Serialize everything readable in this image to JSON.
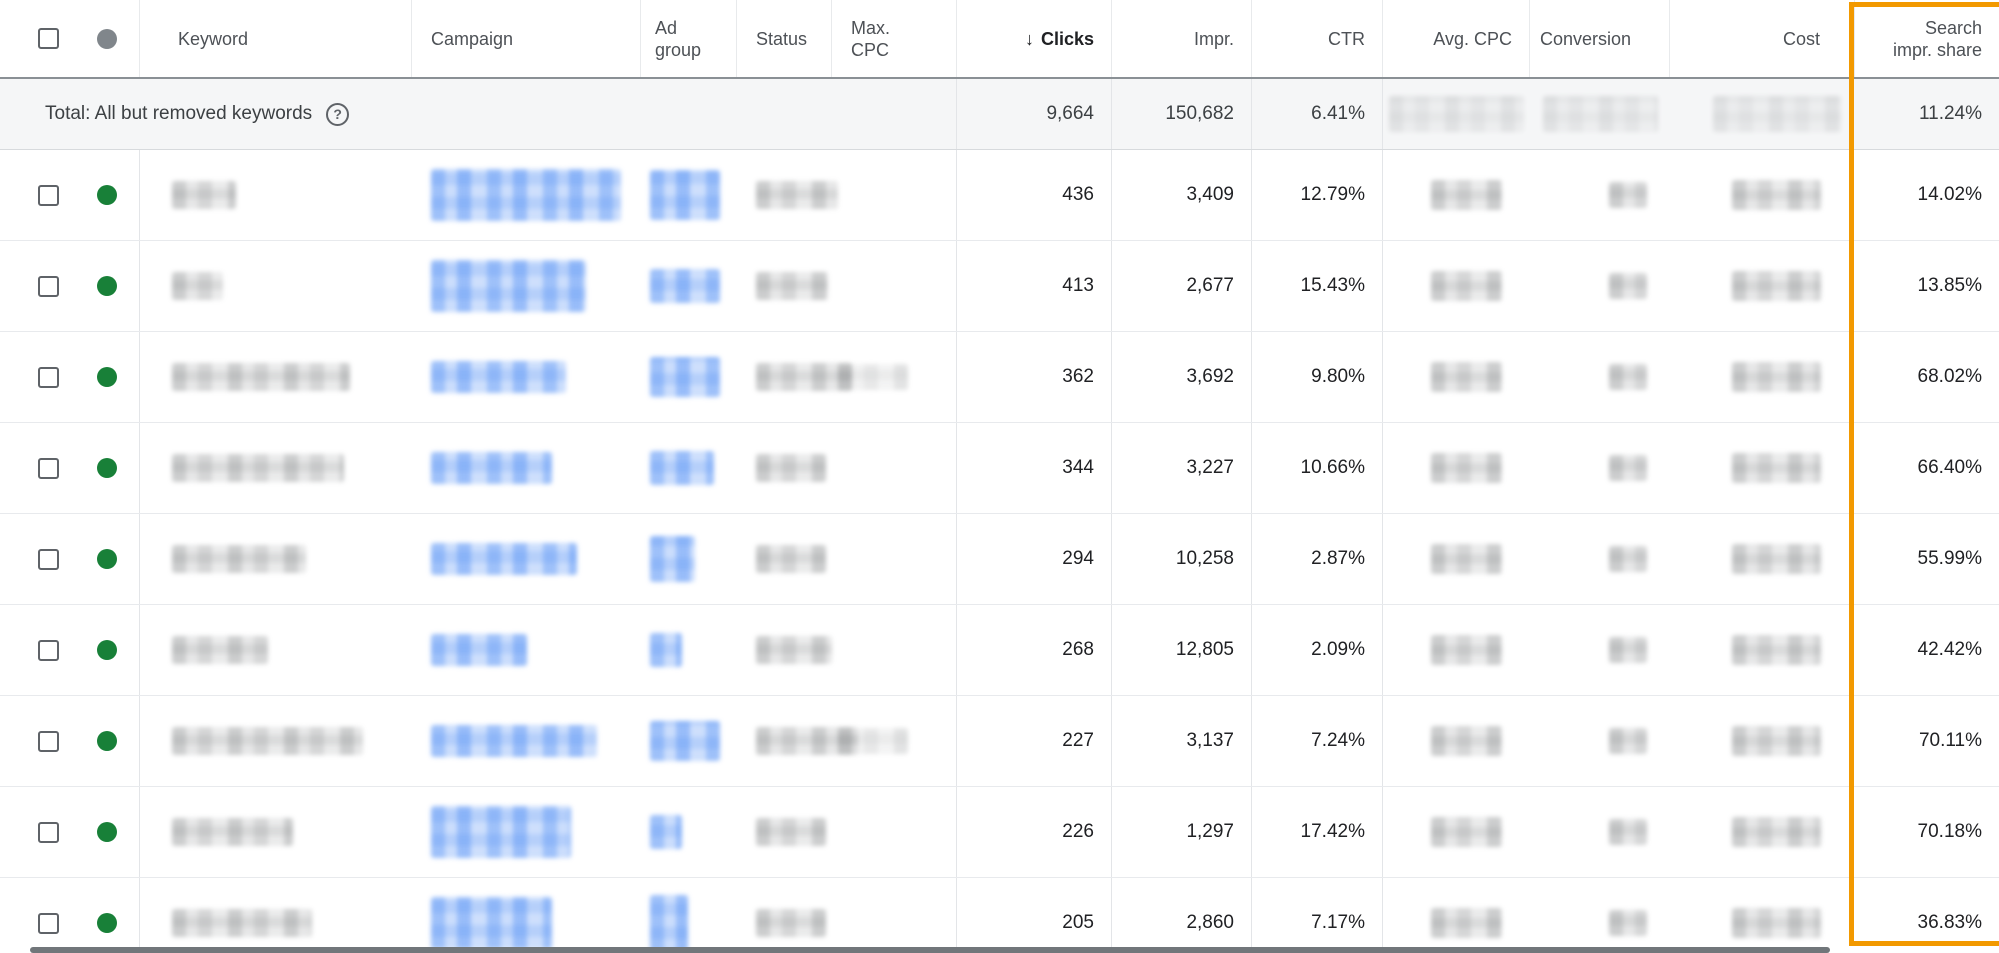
{
  "table": {
    "header": {
      "keyword": "Keyword",
      "campaign": "Campaign",
      "ad_group": "Ad group",
      "status": "Status",
      "max_cpc": "Max. CPC",
      "sort_arrow": "↓",
      "clicks": "Clicks",
      "impr": "Impr.",
      "ctr": "CTR",
      "avg_cpc": "Avg. CPC",
      "conversion": "Conversion",
      "cost": "Cost",
      "search_impr_share": "Search impr. share"
    },
    "total_row": {
      "label": "Total: All but removed keywords",
      "help_glyph": "?",
      "clicks": "9,664",
      "impr": "150,682",
      "ctr": "6.41%",
      "search_impr_share": "11.24%"
    },
    "rows": [
      {
        "clicks": "436",
        "impr": "3,409",
        "ctr": "12.79%",
        "search_impr_share": "14.02%",
        "redact": {
          "keyword_w": 64,
          "campaign_w": 190,
          "campaign_h": 52,
          "ad_group_w": 70,
          "ad_group_h": 50,
          "status_w": 82,
          "max_cpc_w": 0
        }
      },
      {
        "clicks": "413",
        "impr": "2,677",
        "ctr": "15.43%",
        "search_impr_share": "13.85%",
        "redact": {
          "keyword_w": 51,
          "campaign_w": 155,
          "campaign_h": 52,
          "ad_group_w": 70,
          "ad_group_h": 34,
          "status_w": 72,
          "max_cpc_w": 0
        }
      },
      {
        "clicks": "362",
        "impr": "3,692",
        "ctr": "9.80%",
        "search_impr_share": "68.02%",
        "redact": {
          "keyword_w": 178,
          "campaign_w": 135,
          "campaign_h": 32,
          "ad_group_w": 70,
          "ad_group_h": 40,
          "status_w": 96,
          "max_cpc_w": 70
        }
      },
      {
        "clicks": "344",
        "impr": "3,227",
        "ctr": "10.66%",
        "search_impr_share": "66.40%",
        "redact": {
          "keyword_w": 172,
          "campaign_w": 121,
          "campaign_h": 32,
          "ad_group_w": 64,
          "ad_group_h": 34,
          "status_w": 70,
          "max_cpc_w": 0
        }
      },
      {
        "clicks": "294",
        "impr": "10,258",
        "ctr": "2.87%",
        "search_impr_share": "55.99%",
        "redact": {
          "keyword_w": 134,
          "campaign_w": 146,
          "campaign_h": 32,
          "ad_group_w": 45,
          "ad_group_h": 46,
          "status_w": 70,
          "max_cpc_w": 0
        }
      },
      {
        "clicks": "268",
        "impr": "12,805",
        "ctr": "2.09%",
        "search_impr_share": "42.42%",
        "redact": {
          "keyword_w": 96,
          "campaign_w": 96,
          "campaign_h": 32,
          "ad_group_w": 32,
          "ad_group_h": 34,
          "status_w": 76,
          "max_cpc_w": 0
        }
      },
      {
        "clicks": "227",
        "impr": "3,137",
        "ctr": "7.24%",
        "search_impr_share": "70.11%",
        "redact": {
          "keyword_w": 191,
          "campaign_w": 166,
          "campaign_h": 32,
          "ad_group_w": 70,
          "ad_group_h": 40,
          "status_w": 102,
          "max_cpc_w": 70
        }
      },
      {
        "clicks": "226",
        "impr": "1,297",
        "ctr": "17.42%",
        "search_impr_share": "70.18%",
        "redact": {
          "keyword_w": 121,
          "campaign_w": 140,
          "campaign_h": 52,
          "ad_group_w": 32,
          "ad_group_h": 34,
          "status_w": 70,
          "max_cpc_w": 0
        }
      },
      {
        "clicks": "205",
        "impr": "2,860",
        "ctr": "7.17%",
        "search_impr_share": "36.83%",
        "redact": {
          "keyword_w": 140,
          "campaign_w": 121,
          "campaign_h": 52,
          "ad_group_w": 38,
          "ad_group_h": 56,
          "status_w": 70,
          "max_cpc_w": 0
        }
      }
    ]
  },
  "colors": {
    "highlight_box": "#F29900",
    "status_dot_enabled": "#188038",
    "header_dot": "#80868B"
  }
}
